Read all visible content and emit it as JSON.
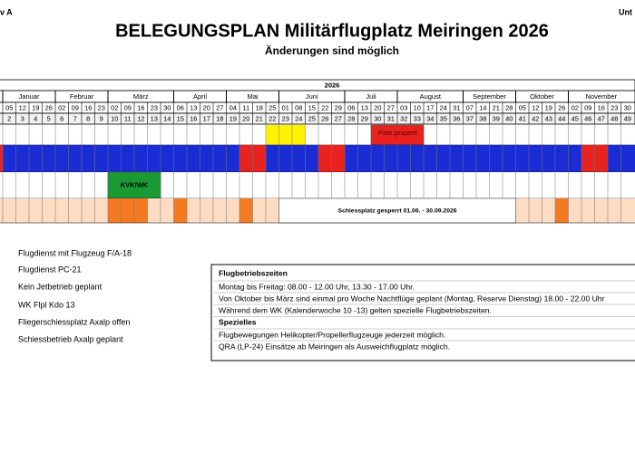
{
  "header": {
    "left": "v A",
    "right": "Unt",
    "title": "BELEGUNGSPLAN Militärflugplatz Meiringen 2026",
    "subtitle": "Änderungen sind möglich"
  },
  "plan": {
    "year": "2026",
    "months": [
      {
        "name": "Januar",
        "from": 2,
        "to": 5
      },
      {
        "name": "Februar",
        "from": 6,
        "to": 9
      },
      {
        "name": "März",
        "from": 10,
        "to": 14
      },
      {
        "name": "April",
        "from": 15,
        "to": 18
      },
      {
        "name": "Mai",
        "from": 19,
        "to": 22
      },
      {
        "name": "Juni",
        "from": 23,
        "to": 27
      },
      {
        "name": "Juli",
        "from": 28,
        "to": 31
      },
      {
        "name": "August",
        "from": 32,
        "to": 36
      },
      {
        "name": "September",
        "from": 37,
        "to": 40
      },
      {
        "name": "Oktober",
        "from": 41,
        "to": 44
      },
      {
        "name": "November",
        "from": 45,
        "to": 49
      }
    ],
    "dates": [
      "05",
      "12",
      "19",
      "26",
      "02",
      "09",
      "16",
      "23",
      "02",
      "09",
      "16",
      "23",
      "30",
      "06",
      "13",
      "20",
      "27",
      "04",
      "11",
      "18",
      "25",
      "01",
      "08",
      "15",
      "22",
      "29",
      "06",
      "13",
      "20",
      "27",
      "03",
      "10",
      "17",
      "24",
      "31",
      "07",
      "14",
      "21",
      "28",
      "05",
      "12",
      "19",
      "26",
      "02",
      "09",
      "16",
      "23",
      "30"
    ],
    "weeks": [
      2,
      3,
      4,
      5,
      6,
      7,
      8,
      9,
      10,
      11,
      12,
      13,
      14,
      15,
      16,
      17,
      18,
      19,
      20,
      21,
      22,
      23,
      24,
      25,
      26,
      27,
      28,
      29,
      30,
      31,
      32,
      33,
      34,
      35,
      36,
      37,
      38,
      39,
      40,
      41,
      42,
      43,
      44,
      45,
      46,
      47,
      48,
      49
    ],
    "rows": [
      {
        "fill": "#ffffff",
        "cells": [
          {
            "from": 22,
            "to": 24,
            "color": "#fff200"
          },
          {
            "from": 30,
            "to": 33,
            "color": "#e8231f",
            "label": "Piste gesperrt"
          }
        ]
      },
      {
        "fill": "#1a2dd4",
        "cells": [
          {
            "from": 1,
            "to": 1,
            "color": "#e8231f"
          },
          {
            "from": 20,
            "to": 21,
            "color": "#e8231f"
          },
          {
            "from": 26,
            "to": 27,
            "color": "#e8231f"
          },
          {
            "from": 46,
            "to": 47,
            "color": "#e8231f"
          }
        ]
      },
      {
        "fill": "#ffffff",
        "cells": [
          {
            "from": 10,
            "to": 13,
            "color": "#1a9a33",
            "label": "KVK/WK"
          }
        ]
      },
      {
        "fill": "#fcdcc2",
        "cells": [
          {
            "from": 10,
            "to": 12,
            "color": "#f47a22"
          },
          {
            "from": 15,
            "to": 15,
            "color": "#f47a22"
          },
          {
            "from": 20,
            "to": 20,
            "color": "#f47a22"
          },
          {
            "from": 44,
            "to": 44,
            "color": "#f47a22"
          },
          {
            "from": 23,
            "to": 40,
            "color": "#ffffff",
            "label": "Schiessplatz gesperrt 01.06. - 30.09.2026"
          }
        ]
      }
    ]
  },
  "legend": [
    "Flugdienst mit Flugzeug F/A-18",
    "Flugdienst PC-21",
    "Kein Jetbetrieb geplant",
    "WK Flpl Kdo 13",
    "Fliegerschiessplatz Axalp offen",
    "Schiessbetrieb Axalp geplant"
  ],
  "info": {
    "heading": "Flugbetriebszeiten",
    "lines": [
      "Montag bis Freitag: 08.00 - 12.00 Uhr, 13.30 - 17.00 Uhr.",
      "Von Oktober bis März sind einmal pro Woche Nachtflüge geplant (Montag, Reserve Dienstag) 18.00 - 22.00 Uhr",
      "Während dem WK (Kalenderwoche 10 -13) gelten spezielle Flugbetriebszeiten."
    ],
    "heading2": "Spezielles",
    "lines2": [
      "Flugbewegungen Helikopter/Propellerflugzeuge jederzeit möglich.",
      "QRA (LP-24) Einsätze ab Meiringen als Ausweichflugplatz möglich."
    ]
  }
}
